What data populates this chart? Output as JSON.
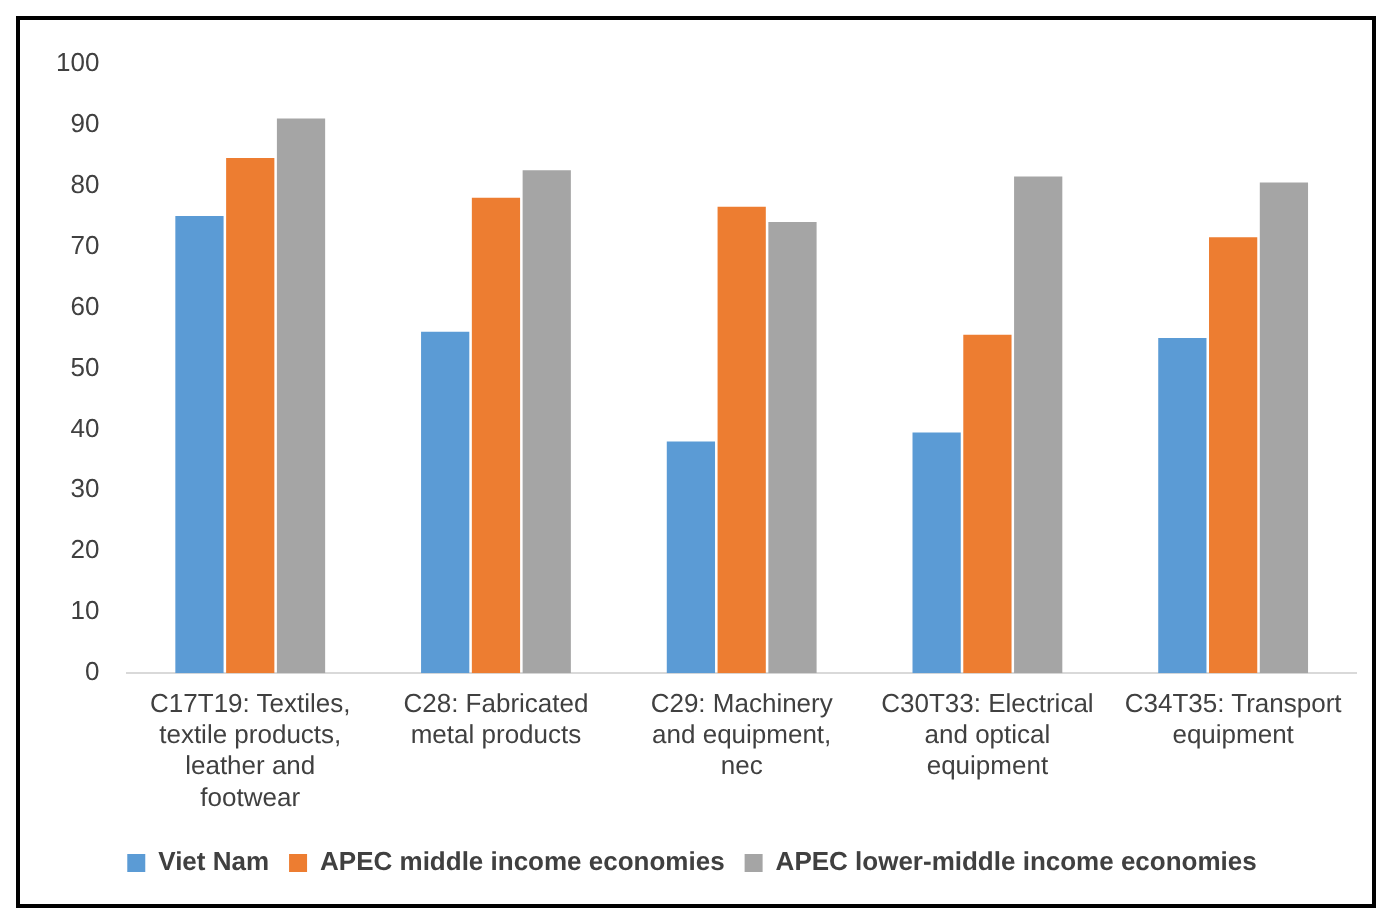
{
  "chart_data": {
    "type": "bar",
    "categories": [
      "C17T19: Textiles, textile products, leather and footwear",
      "C28: Fabricated metal products",
      "C29: Machinery and equipment, nec",
      "C30T33: Electrical and optical equipment",
      "C34T35: Transport equipment"
    ],
    "series": [
      {
        "name": "Viet Nam",
        "color": "#5b9bd5",
        "values": [
          75,
          56,
          38,
          39.5,
          55
        ]
      },
      {
        "name": "APEC middle income economies",
        "color": "#ed7d31",
        "values": [
          84.5,
          78,
          76.5,
          55.5,
          71.5
        ]
      },
      {
        "name": "APEC lower-middle income economies",
        "color": "#a5a5a5",
        "values": [
          91,
          82.5,
          74,
          81.5,
          80.5
        ]
      }
    ],
    "ylim": [
      0,
      100
    ],
    "yticks": [
      0,
      10,
      20,
      30,
      40,
      50,
      60,
      70,
      80,
      90,
      100
    ],
    "grid": false,
    "legend": "bottom"
  }
}
